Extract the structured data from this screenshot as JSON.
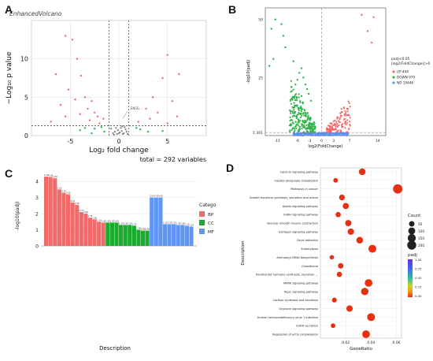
{
  "panels": {
    "A": {
      "label": "A",
      "title": "EnhancedVolcano",
      "caption": "total = 292 variables"
    },
    "B": {
      "label": "B"
    },
    "C": {
      "label": "C"
    },
    "D": {
      "label": "D"
    }
  },
  "colors": {
    "grey": "#8c8c8c",
    "green": "#2fb34a",
    "red": "#f06a6a",
    "blue": "#5b8ff2",
    "bp": "#f26b6b",
    "cc": "#1aaa2e",
    "mf": "#5f95f5",
    "dot_low": "#e8300f",
    "dot_high": "#6a2bd8"
  },
  "chart_data": [
    {
      "type": "scatter",
      "panel": "A",
      "title": "EnhancedVolcano",
      "xlabel": "Log₂ fold change",
      "ylabel": "−Log₁₀ p value",
      "xlim": [
        -9,
        9
      ],
      "ylim": [
        0,
        15
      ],
      "xticks": [
        -5,
        0,
        5
      ],
      "yticks": [
        0,
        5,
        10
      ],
      "cutoffs": {
        "x": [
          -1,
          1
        ],
        "y": 1.3
      },
      "annotation": "ENSG...",
      "grid": true,
      "series": [
        {
          "color": "grey",
          "points": [
            [
              -0.6,
              0.3
            ],
            [
              -0.4,
              0.5
            ],
            [
              -0.2,
              0.2
            ],
            [
              0.1,
              0.4
            ],
            [
              0.3,
              0.6
            ],
            [
              0.5,
              0.3
            ],
            [
              0.7,
              0.8
            ],
            [
              -0.8,
              0.9
            ],
            [
              0.2,
              1.0
            ],
            [
              -0.1,
              0.7
            ],
            [
              0.4,
              0.2
            ],
            [
              0.6,
              1.1
            ],
            [
              -0.5,
              0.1
            ],
            [
              0.8,
              0.5
            ],
            [
              0.0,
              0.3
            ],
            [
              0.35,
              1.2
            ],
            [
              -0.3,
              1.0
            ],
            [
              0.9,
              0.2
            ]
          ]
        },
        {
          "color": "green",
          "points": [
            [
              -2.5,
              0.9
            ],
            [
              -3.5,
              1.0
            ],
            [
              -1.5,
              0.5
            ],
            [
              -4.0,
              0.7
            ],
            [
              2.2,
              0.8
            ],
            [
              3.0,
              0.5
            ],
            [
              1.8,
              1.0
            ],
            [
              -1.8,
              1.1
            ],
            [
              4.5,
              0.6
            ],
            [
              -2.8,
              0.3
            ]
          ]
        },
        {
          "color": "red",
          "points": [
            [
              -5.5,
              13
            ],
            [
              -4.8,
              12.5
            ],
            [
              -4.3,
              10
            ],
            [
              -6.5,
              8
            ],
            [
              -3.9,
              7.8
            ],
            [
              -5.2,
              6
            ],
            [
              -3.5,
              5
            ],
            [
              -4.5,
              4.7
            ],
            [
              -2.8,
              4.5
            ],
            [
              -6.0,
              4
            ],
            [
              -3.2,
              3.5
            ],
            [
              -2.5,
              3
            ],
            [
              -4.0,
              2.8
            ],
            [
              -5.5,
              2.5
            ],
            [
              -3.0,
              2
            ],
            [
              -2.0,
              1.6
            ],
            [
              -7.0,
              1.8
            ],
            [
              -1.6,
              2.2
            ],
            [
              -2.2,
              2.5
            ],
            [
              5.0,
              10.5
            ],
            [
              6.2,
              8
            ],
            [
              4.5,
              7.5
            ],
            [
              3.5,
              5
            ],
            [
              5.5,
              4.5
            ],
            [
              2.8,
              3.5
            ],
            [
              4.0,
              3
            ],
            [
              6.0,
              2.5
            ],
            [
              3.2,
              2.2
            ],
            [
              2.0,
              1.8
            ],
            [
              5.0,
              1.6
            ]
          ]
        }
      ]
    },
    {
      "type": "scatter",
      "panel": "B",
      "xlabel": "log2(FoldChange)",
      "ylabel": "-log10(padj)",
      "xticks": [
        -11,
        -6,
        -3,
        0,
        3,
        7,
        14
      ],
      "yticks": [
        1.301,
        25,
        50
      ],
      "xlim": [
        -14,
        16
      ],
      "ylim": [
        0,
        55
      ],
      "cutoffs": {
        "x": 0,
        "y": 1.301
      },
      "legend": {
        "title": "padj<0.05\n|log2(FoldChange)|>0",
        "entries": [
          {
            "label": "UP 444",
            "color": "red"
          },
          {
            "label": "DOWN 970",
            "color": "green"
          },
          {
            "label": "NO 19446",
            "color": "blue"
          }
        ]
      },
      "highlight_points": [
        [
          -11.5,
          50
        ],
        [
          -9,
          38
        ],
        [
          -13,
          30
        ],
        [
          -12,
          33
        ],
        [
          -7,
          32
        ],
        [
          -5.5,
          27
        ],
        [
          -4.5,
          25
        ],
        [
          -5,
          29
        ],
        [
          -6,
          24
        ],
        [
          -4,
          22
        ],
        [
          -3.6,
          20
        ],
        [
          -6.5,
          22
        ],
        [
          -7.5,
          21
        ],
        [
          -3.2,
          18
        ],
        [
          -2.6,
          15
        ],
        [
          -5,
          17
        ],
        [
          10,
          52
        ],
        [
          13,
          51
        ],
        [
          11.5,
          45
        ],
        [
          12.5,
          40
        ],
        [
          -10,
          48
        ],
        [
          -9.5,
          43
        ],
        [
          -12.5,
          46
        ]
      ]
    },
    {
      "type": "bar",
      "panel": "C",
      "xlabel": "Description",
      "ylabel": "-log10(padj)",
      "ylim": [
        0,
        4.5
      ],
      "yticks": [
        0,
        1,
        2,
        3,
        4
      ],
      "legend": {
        "title": "Category",
        "entries": [
          {
            "label": "BP",
            "color": "bp"
          },
          {
            "label": "CC",
            "color": "cc"
          },
          {
            "label": "MF",
            "color": "mf"
          }
        ]
      },
      "series": [
        {
          "name": "BP",
          "values": [
            4.3,
            4.28,
            4.2,
            3.5,
            3.3,
            3.2,
            2.7,
            2.55,
            2.1,
            2.0,
            1.75,
            1.65,
            1.5,
            1.45
          ]
        },
        {
          "name": "CC",
          "values": [
            1.45,
            1.45,
            1.45,
            1.3,
            1.3,
            1.3,
            1.25,
            1.0,
            0.95,
            0.95
          ]
        },
        {
          "name": "MF",
          "values": [
            3.0,
            3.0,
            3.0,
            1.35,
            1.35,
            1.35,
            1.3,
            1.3,
            1.25,
            1.2
          ]
        }
      ]
    },
    {
      "type": "scatter",
      "panel": "D",
      "xlabel": "GeneRatio",
      "ylabel": "Description",
      "xlim": [
        0.0,
        0.064
      ],
      "xticks": [
        0.02,
        0.04,
        0.06
      ],
      "legend_size": {
        "title": "Count",
        "values": [
          50,
          100,
          150,
          200
        ]
      },
      "legend_color": {
        "title": "padj",
        "values": [
          1.0,
          0.75,
          0.5,
          0.25,
          0.0
        ]
      },
      "categories": [
        "Calcium signaling pathway",
        "Inositol phosphate metabolism",
        "Pathways in cancer",
        "Growth hormone synthesis, secretion and action",
        "Apelin signaling pathway",
        "GnRH signaling pathway",
        "Vascular smooth muscle contraction",
        "Estrogen signaling pathway",
        "Focal adhesion",
        "Endocytosis",
        "Aminoacyl-tRNA biosynthesis",
        "Glutathione",
        "Parathyroid hormone synthesis, secretion ...",
        "MAPK signaling pathway",
        "Rap1 signaling pathway",
        "Cortisol synthesis and secretion",
        "Oxytocin signaling pathway",
        "Human immunodeficiency virus 1 infection",
        "GnRH secretion",
        "Regulation of actin cytoskeleton"
      ],
      "x": [
        0.033,
        0.012,
        0.061,
        0.017,
        0.02,
        0.014,
        0.022,
        0.024,
        0.031,
        0.041,
        0.009,
        0.016,
        0.015,
        0.038,
        0.035,
        0.011,
        0.023,
        0.04,
        0.01,
        0.036
      ],
      "size": [
        90,
        30,
        220,
        60,
        70,
        45,
        75,
        80,
        90,
        140,
        25,
        50,
        45,
        130,
        120,
        35,
        80,
        140,
        30,
        135
      ],
      "padj": [
        0.02,
        0.0,
        0.05,
        0.03,
        0.01,
        0.02,
        0.03,
        0.02,
        0.01,
        0.0,
        0.04,
        0.01,
        0.01,
        0.0,
        0.0,
        0.02,
        0.01,
        0.0,
        0.03,
        0.0
      ]
    }
  ]
}
